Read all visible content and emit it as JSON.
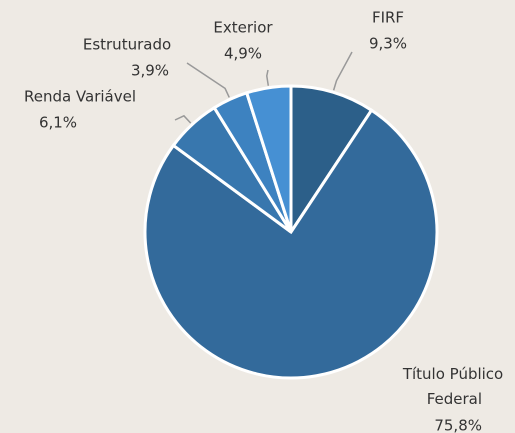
{
  "chart_data": {
    "type": "pie",
    "categories": [
      "FIRF",
      "Título Público Federal",
      "Renda Variável",
      "Estruturado",
      "Exterior"
    ],
    "values": [
      9.3,
      75.8,
      6.1,
      3.9,
      4.9
    ],
    "value_labels": [
      "9,3%",
      "75,8%",
      "6,1%",
      "3,9%",
      "4,9%"
    ],
    "colors": [
      "#2c5f89",
      "#336a9b",
      "#3877ae",
      "#3d82c0",
      "#4690d3"
    ]
  }
}
